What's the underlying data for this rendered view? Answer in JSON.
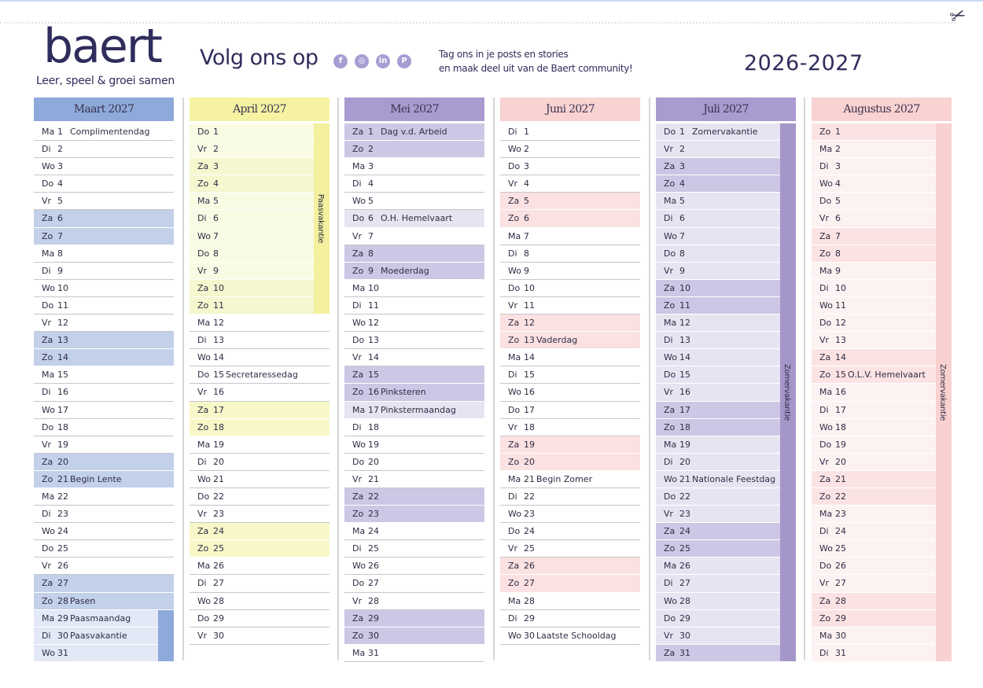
{
  "header": {
    "logo": "baert",
    "tagline": "Leer, speel & groei samen",
    "follow_label": "Volg ons op",
    "social_icons": [
      "facebook-icon",
      "instagram-icon",
      "linkedin-icon",
      "pinterest-icon"
    ],
    "tag_line_1": "Tag ons in je posts en stories",
    "tag_line_2": "en maak deel uit van de Baert community!",
    "year": "2026-2027"
  },
  "months": [
    {
      "title": "Maart 2027",
      "colors": {
        "header": "#8eaadb",
        "weekend": "#c3d0ea",
        "vacation": "#e2e8f5",
        "vacation_weekend": "#c3d0ea",
        "bar": "#8eaadb"
      },
      "vacation": {
        "from": 29,
        "to": 31,
        "label": ""
      },
      "holidays": [],
      "days": [
        [
          "Ma",
          1,
          "Complimentendag"
        ],
        [
          "Di",
          2,
          ""
        ],
        [
          "Wo",
          3,
          ""
        ],
        [
          "Do",
          4,
          ""
        ],
        [
          "Vr",
          5,
          ""
        ],
        [
          "Za",
          6,
          ""
        ],
        [
          "Zo",
          7,
          ""
        ],
        [
          "Ma",
          8,
          ""
        ],
        [
          "Di",
          9,
          ""
        ],
        [
          "Wo",
          10,
          ""
        ],
        [
          "Do",
          11,
          ""
        ],
        [
          "Vr",
          12,
          ""
        ],
        [
          "Za",
          13,
          ""
        ],
        [
          "Zo",
          14,
          ""
        ],
        [
          "Ma",
          15,
          ""
        ],
        [
          "Di",
          16,
          ""
        ],
        [
          "Wo",
          17,
          ""
        ],
        [
          "Do",
          18,
          ""
        ],
        [
          "Vr",
          19,
          ""
        ],
        [
          "Za",
          20,
          ""
        ],
        [
          "Zo",
          21,
          "Begin Lente"
        ],
        [
          "Ma",
          22,
          ""
        ],
        [
          "Di",
          23,
          ""
        ],
        [
          "Wo",
          24,
          ""
        ],
        [
          "Do",
          25,
          ""
        ],
        [
          "Vr",
          26,
          ""
        ],
        [
          "Za",
          27,
          ""
        ],
        [
          "Zo",
          28,
          "Pasen"
        ],
        [
          "Ma",
          29,
          "Paasmaandag"
        ],
        [
          "Di",
          30,
          "Paasvakantie"
        ],
        [
          "Wo",
          31,
          ""
        ]
      ]
    },
    {
      "title": "April 2027",
      "colors": {
        "header": "#f5f3a2",
        "weekend": "#f8f7c8",
        "vacation": "#fafbe4",
        "vacation_weekend": "#f6f6cf",
        "bar": "#f3f19e"
      },
      "vacation": {
        "from": 1,
        "to": 11,
        "label": "Paasvakantie"
      },
      "holidays": [],
      "days": [
        [
          "Do",
          1,
          ""
        ],
        [
          "Vr",
          2,
          ""
        ],
        [
          "Za",
          3,
          ""
        ],
        [
          "Zo",
          4,
          ""
        ],
        [
          "Ma",
          5,
          ""
        ],
        [
          "Di",
          6,
          ""
        ],
        [
          "Wo",
          7,
          ""
        ],
        [
          "Do",
          8,
          ""
        ],
        [
          "Vr",
          9,
          ""
        ],
        [
          "Za",
          10,
          ""
        ],
        [
          "Zo",
          11,
          ""
        ],
        [
          "Ma",
          12,
          ""
        ],
        [
          "Di",
          13,
          ""
        ],
        [
          "Wo",
          14,
          ""
        ],
        [
          "Do",
          15,
          "Secretaressedag"
        ],
        [
          "Vr",
          16,
          ""
        ],
        [
          "Za",
          17,
          ""
        ],
        [
          "Zo",
          18,
          ""
        ],
        [
          "Ma",
          19,
          ""
        ],
        [
          "Di",
          20,
          ""
        ],
        [
          "Wo",
          21,
          ""
        ],
        [
          "Do",
          22,
          ""
        ],
        [
          "Vr",
          23,
          ""
        ],
        [
          "Za",
          24,
          ""
        ],
        [
          "Zo",
          25,
          ""
        ],
        [
          "Ma",
          26,
          ""
        ],
        [
          "Di",
          27,
          ""
        ],
        [
          "Wo",
          28,
          ""
        ],
        [
          "Do",
          29,
          ""
        ],
        [
          "Vr",
          30,
          ""
        ]
      ]
    },
    {
      "title": "Mei 2027",
      "colors": {
        "header": "#a99ad0",
        "weekend": "#cdc6e4",
        "holiday": "#e7e4f2"
      },
      "vacation": null,
      "holidays": [
        6,
        17
      ],
      "days": [
        [
          "Za",
          1,
          "Dag v.d. Arbeid"
        ],
        [
          "Zo",
          2,
          ""
        ],
        [
          "Ma",
          3,
          ""
        ],
        [
          "Di",
          4,
          ""
        ],
        [
          "Wo",
          5,
          ""
        ],
        [
          "Do",
          6,
          "O.H. Hemelvaart"
        ],
        [
          "Vr",
          7,
          ""
        ],
        [
          "Za",
          8,
          ""
        ],
        [
          "Zo",
          9,
          "Moederdag"
        ],
        [
          "Ma",
          10,
          ""
        ],
        [
          "Di",
          11,
          ""
        ],
        [
          "Wo",
          12,
          ""
        ],
        [
          "Do",
          13,
          ""
        ],
        [
          "Vr",
          14,
          ""
        ],
        [
          "Za",
          15,
          ""
        ],
        [
          "Zo",
          16,
          "Pinksteren"
        ],
        [
          "Ma",
          17,
          "Pinkstermaandag"
        ],
        [
          "Di",
          18,
          ""
        ],
        [
          "Wo",
          19,
          ""
        ],
        [
          "Do",
          20,
          ""
        ],
        [
          "Vr",
          21,
          ""
        ],
        [
          "Za",
          22,
          ""
        ],
        [
          "Zo",
          23,
          ""
        ],
        [
          "Ma",
          24,
          ""
        ],
        [
          "Di",
          25,
          ""
        ],
        [
          "Wo",
          26,
          ""
        ],
        [
          "Do",
          27,
          ""
        ],
        [
          "Vr",
          28,
          ""
        ],
        [
          "Za",
          29,
          ""
        ],
        [
          "Zo",
          30,
          ""
        ],
        [
          "Ma",
          31,
          ""
        ]
      ]
    },
    {
      "title": "Juni 2027",
      "colors": {
        "header": "#f9d2d2",
        "weekend": "#fbe1e1"
      },
      "vacation": null,
      "holidays": [],
      "days": [
        [
          "Di",
          1,
          ""
        ],
        [
          "Wo",
          2,
          ""
        ],
        [
          "Do",
          3,
          ""
        ],
        [
          "Vr",
          4,
          ""
        ],
        [
          "Za",
          5,
          ""
        ],
        [
          "Zo",
          6,
          ""
        ],
        [
          "Ma",
          7,
          ""
        ],
        [
          "Di",
          8,
          ""
        ],
        [
          "Wo",
          9,
          ""
        ],
        [
          "Do",
          10,
          ""
        ],
        [
          "Vr",
          11,
          ""
        ],
        [
          "Za",
          12,
          ""
        ],
        [
          "Zo",
          13,
          "Vaderdag"
        ],
        [
          "Ma",
          14,
          ""
        ],
        [
          "Di",
          15,
          ""
        ],
        [
          "Wo",
          16,
          ""
        ],
        [
          "Do",
          17,
          ""
        ],
        [
          "Vr",
          18,
          ""
        ],
        [
          "Za",
          19,
          ""
        ],
        [
          "Zo",
          20,
          ""
        ],
        [
          "Ma",
          21,
          "Begin Zomer"
        ],
        [
          "Di",
          22,
          ""
        ],
        [
          "Wo",
          23,
          ""
        ],
        [
          "Do",
          24,
          ""
        ],
        [
          "Vr",
          25,
          ""
        ],
        [
          "Za",
          26,
          ""
        ],
        [
          "Zo",
          27,
          ""
        ],
        [
          "Ma",
          28,
          ""
        ],
        [
          "Di",
          29,
          ""
        ],
        [
          "Wo",
          30,
          "Laatste Schooldag"
        ]
      ]
    },
    {
      "title": "Juli 2027",
      "colors": {
        "header": "#a99ad0",
        "weekend": "#cdc6e4",
        "vacation": "#e7e4f2",
        "vacation_weekend": "#cdc6e4",
        "bar": "#a596c9"
      },
      "vacation": {
        "from": 1,
        "to": 31,
        "label": "Zomervakantie"
      },
      "holidays": [],
      "days": [
        [
          "Do",
          1,
          "Zomervakantie"
        ],
        [
          "Vr",
          2,
          ""
        ],
        [
          "Za",
          3,
          ""
        ],
        [
          "Zo",
          4,
          ""
        ],
        [
          "Ma",
          5,
          ""
        ],
        [
          "Di",
          6,
          ""
        ],
        [
          "Wo",
          7,
          ""
        ],
        [
          "Do",
          8,
          ""
        ],
        [
          "Vr",
          9,
          ""
        ],
        [
          "Za",
          10,
          ""
        ],
        [
          "Zo",
          11,
          ""
        ],
        [
          "Ma",
          12,
          ""
        ],
        [
          "Di",
          13,
          ""
        ],
        [
          "Wo",
          14,
          ""
        ],
        [
          "Do",
          15,
          ""
        ],
        [
          "Vr",
          16,
          ""
        ],
        [
          "Za",
          17,
          ""
        ],
        [
          "Zo",
          18,
          ""
        ],
        [
          "Ma",
          19,
          ""
        ],
        [
          "Di",
          20,
          ""
        ],
        [
          "Wo",
          21,
          "Nationale Feestdag"
        ],
        [
          "Do",
          22,
          ""
        ],
        [
          "Vr",
          23,
          ""
        ],
        [
          "Za",
          24,
          ""
        ],
        [
          "Zo",
          25,
          ""
        ],
        [
          "Ma",
          26,
          ""
        ],
        [
          "Di",
          27,
          ""
        ],
        [
          "Wo",
          28,
          ""
        ],
        [
          "Do",
          29,
          ""
        ],
        [
          "Vr",
          30,
          ""
        ],
        [
          "Za",
          31,
          ""
        ]
      ]
    },
    {
      "title": "Augustus 2027",
      "colors": {
        "header": "#f9d2d2",
        "weekend": "#fce3e3",
        "vacation": "#fdf2f2",
        "vacation_weekend": "#fce3e3",
        "bar": "#f9d1d1"
      },
      "vacation": {
        "from": 1,
        "to": 31,
        "label": "Zomervakantie"
      },
      "holidays": [],
      "days": [
        [
          "Zo",
          1,
          ""
        ],
        [
          "Ma",
          2,
          ""
        ],
        [
          "Di",
          3,
          ""
        ],
        [
          "Wo",
          4,
          ""
        ],
        [
          "Do",
          5,
          ""
        ],
        [
          "Vr",
          6,
          ""
        ],
        [
          "Za",
          7,
          ""
        ],
        [
          "Zo",
          8,
          ""
        ],
        [
          "Ma",
          9,
          ""
        ],
        [
          "Di",
          10,
          ""
        ],
        [
          "Wo",
          11,
          ""
        ],
        [
          "Do",
          12,
          ""
        ],
        [
          "Vr",
          13,
          ""
        ],
        [
          "Za",
          14,
          ""
        ],
        [
          "Zo",
          15,
          "O.L.V. Hemelvaart"
        ],
        [
          "Ma",
          16,
          ""
        ],
        [
          "Di",
          17,
          ""
        ],
        [
          "Wo",
          18,
          ""
        ],
        [
          "Do",
          19,
          ""
        ],
        [
          "Vr",
          20,
          ""
        ],
        [
          "Za",
          21,
          ""
        ],
        [
          "Zo",
          22,
          ""
        ],
        [
          "Ma",
          23,
          ""
        ],
        [
          "Di",
          24,
          ""
        ],
        [
          "Wo",
          25,
          ""
        ],
        [
          "Do",
          26,
          ""
        ],
        [
          "Vr",
          27,
          ""
        ],
        [
          "Za",
          28,
          ""
        ],
        [
          "Zo",
          29,
          ""
        ],
        [
          "Ma",
          30,
          ""
        ],
        [
          "Di",
          31,
          ""
        ]
      ]
    }
  ]
}
